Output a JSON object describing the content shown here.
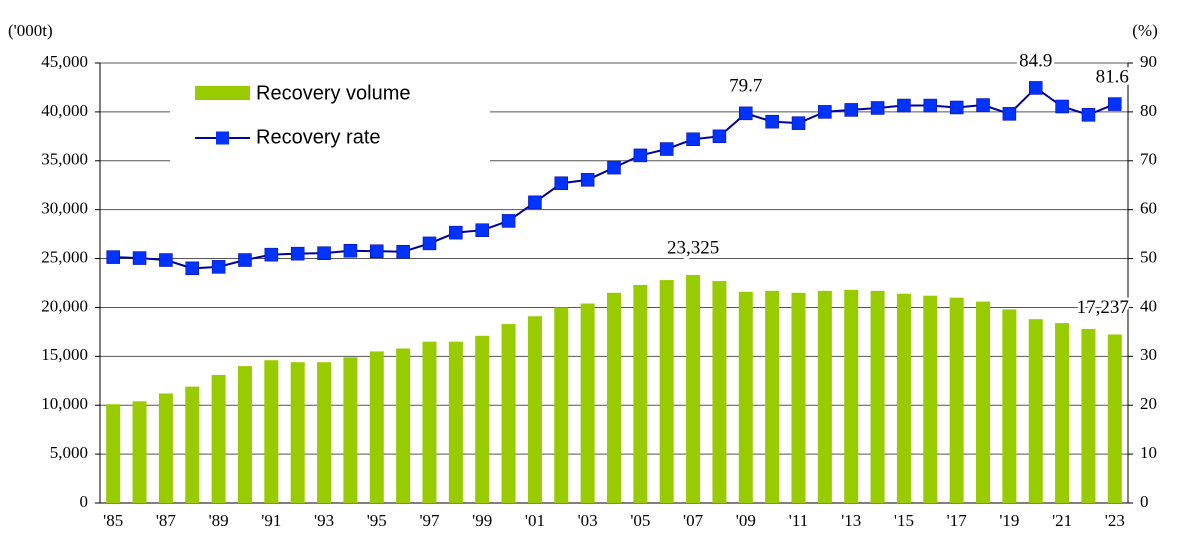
{
  "chart_data": {
    "type": "bar-line",
    "ylabel": "('000t)",
    "y2label": "(%)",
    "categories": [
      "'85",
      null,
      "'87",
      null,
      "'89",
      null,
      "'91",
      null,
      "'93",
      null,
      "'95",
      null,
      "'97",
      null,
      "'99",
      null,
      "'01",
      null,
      "'03",
      null,
      "'05",
      null,
      "'07",
      null,
      "'09",
      null,
      "'11",
      null,
      "'13",
      null,
      "'15",
      null,
      "'17",
      null,
      "'19",
      null,
      "'21",
      null,
      "'23"
    ],
    "ylim": [
      0,
      45000
    ],
    "yticks": [
      0,
      {
        "value": 5000,
        "label": "5,000"
      },
      {
        "value": 10000,
        "label": "10,000"
      },
      {
        "value": 15000,
        "label": "15,000"
      },
      {
        "value": 20000,
        "label": "20,000"
      },
      {
        "value": 25000,
        "label": "25,000"
      },
      {
        "value": 30000,
        "label": "30,000"
      },
      {
        "value": 35000,
        "label": "35,000"
      },
      {
        "value": 40000,
        "label": "40,000"
      },
      {
        "value": 45000,
        "label": "45,000"
      }
    ],
    "y2lim": [
      0,
      90
    ],
    "y2ticks": [
      0,
      10,
      20,
      30,
      40,
      50,
      60,
      70,
      80,
      90
    ],
    "grid": true,
    "legend": "upper left",
    "series": [
      {
        "name": "Recovery volume",
        "type": "bar",
        "color": "#99cc00",
        "values": [
          10100,
          10400,
          11200,
          11900,
          13100,
          14000,
          14600,
          14400,
          14400,
          14900,
          15500,
          15800,
          16500,
          16500,
          17100,
          18300,
          19100,
          20000,
          20400,
          21500,
          22300,
          22800,
          23325,
          22700,
          21600,
          21700,
          21500,
          21700,
          21800,
          21700,
          21400,
          21200,
          21000,
          20600,
          19800,
          18800,
          18400,
          17800,
          17237
        ],
        "value_labels": [
          null,
          null,
          null,
          null,
          null,
          null,
          null,
          null,
          null,
          null,
          null,
          null,
          null,
          null,
          null,
          null,
          null,
          null,
          null,
          null,
          null,
          null,
          "23,325",
          null,
          null,
          null,
          null,
          null,
          null,
          null,
          null,
          null,
          null,
          null,
          null,
          null,
          null,
          null,
          "17,237"
        ]
      },
      {
        "name": "Recovery rate",
        "type": "line",
        "axis": "y2",
        "color": "#000099",
        "marker_color": "#0033ff",
        "values": [
          50.3,
          50.1,
          49.7,
          48.0,
          48.3,
          49.7,
          50.8,
          51.0,
          51.1,
          51.6,
          51.5,
          51.4,
          53.1,
          55.3,
          55.8,
          57.7,
          61.5,
          65.4,
          66.1,
          68.6,
          71.1,
          72.4,
          74.4,
          75.0,
          79.7,
          78.0,
          77.7,
          80.0,
          80.4,
          80.8,
          81.3,
          81.3,
          80.9,
          81.4,
          79.6,
          84.9,
          81.1,
          79.4,
          81.6
        ],
        "value_labels": [
          null,
          null,
          null,
          null,
          null,
          null,
          null,
          null,
          null,
          null,
          null,
          null,
          null,
          null,
          null,
          null,
          null,
          null,
          null,
          null,
          null,
          null,
          null,
          null,
          "79.7",
          null,
          null,
          null,
          null,
          null,
          null,
          null,
          null,
          null,
          null,
          "84.9",
          null,
          null,
          "81.6"
        ]
      }
    ]
  }
}
